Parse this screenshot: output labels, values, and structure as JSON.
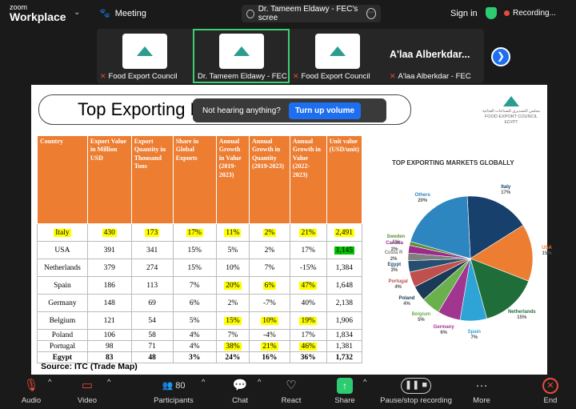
{
  "app": {
    "logo_line1": "zoom",
    "logo_line2": "Workplace"
  },
  "topbar": {
    "meeting_label": "Meeting",
    "share_tab_label": "Dr. Tameem Eldawy - FEC's scree",
    "signin": "Sign in",
    "recording": "Recording..."
  },
  "participants": [
    {
      "name": "Food Export Council",
      "muted": true
    },
    {
      "name": "Dr. Tameem Eldawy - FEC",
      "muted": false
    },
    {
      "name": "Food Export Council",
      "muted": true
    },
    {
      "name": "A'laa Alberkdar - FEC",
      "muted": true,
      "display_name": "A'laa Alberkdar..."
    }
  ],
  "slide": {
    "title": "Top Exporting Markets Globally 2023",
    "toast_text": "Not hearing anything?",
    "toast_button": "Turn up volume",
    "logo_text_ar": "مجلس التصديري للصناعات الغذائية",
    "logo_text_en": "FOOD EXPORT COUNCIL",
    "logo_text_country": "EGYPT",
    "source": "Source: ITC (Trade Map)",
    "table": {
      "headers": [
        "Country",
        "Export Value in Million USD",
        "Export Quantity in Thousand Tons",
        "Share in Global Exports",
        "Annual Growth in Value (2019-2023)",
        "Annual Growth in Quantity (2019-2023)",
        "Annual Growth in Value (2022-2023)",
        "Unit value (USD/unit)"
      ],
      "rows": [
        [
          "Italy",
          "430",
          "173",
          "17%",
          "11%",
          "2%",
          "21%",
          "2,491"
        ],
        [
          "USA",
          "391",
          "341",
          "15%",
          "5%",
          "2%",
          "17%",
          "1,145"
        ],
        [
          "Netherlands",
          "379",
          "274",
          "15%",
          "10%",
          "7%",
          "-15%",
          "1,384"
        ],
        [
          "Spain",
          "186",
          "113",
          "7%",
          "20%",
          "6%",
          "47%",
          "1,648"
        ],
        [
          "Germany",
          "148",
          "69",
          "6%",
          "2%",
          "-7%",
          "40%",
          "2,138"
        ],
        [
          "Belgium",
          "121",
          "54",
          "5%",
          "15%",
          "10%",
          "19%",
          "1,906"
        ],
        [
          "Poland",
          "106",
          "58",
          "4%",
          "7%",
          "-4%",
          "17%",
          "1,834"
        ],
        [
          "Portugal",
          "98",
          "71",
          "4%",
          "38%",
          "21%",
          "46%",
          "1,381"
        ],
        [
          "Egypt",
          "83",
          "48",
          "3%",
          "24%",
          "16%",
          "36%",
          "1,732"
        ]
      ]
    }
  },
  "chart_data": {
    "type": "pie",
    "title": "TOP EXPORTING MARKETS GLOBALLY",
    "categories": [
      "Italy",
      "USA",
      "Netherlands",
      "Spain",
      "Germany",
      "Belgium",
      "Poland",
      "Portugal",
      "Egypt",
      "Costa Rica",
      "Canada",
      "Sweden",
      "Others"
    ],
    "values": [
      17,
      15,
      15,
      7,
      6,
      5,
      4,
      4,
      3,
      2,
      2,
      1,
      20
    ],
    "labels": [
      "Italy\n17%",
      "USA\n15%",
      "Netherlands\n15%",
      "Spain\n7%",
      "Germany\n6%",
      "Belgium\n5%",
      "Poland\n4%",
      "Portugal\n4%",
      "Egypt\n3%",
      "Costa R\n2%",
      "Canada\n2%",
      "Sweden\n1%",
      "Others\n20%"
    ],
    "colors": [
      "#17406d",
      "#ec7d31",
      "#1f6e3a",
      "#2ea3d5",
      "#a0368f",
      "#6ab04c",
      "#1b3a57",
      "#c0504d",
      "#254e70",
      "#7f7f7f",
      "#9c2a8c",
      "#5a8f3a",
      "#2e86c1"
    ]
  },
  "controls": [
    {
      "label": "Audio",
      "icon": "mic-off-icon"
    },
    {
      "label": "Video",
      "icon": "video-off-icon"
    },
    {
      "label": "Participants",
      "icon": "participants-icon",
      "count": "80"
    },
    {
      "label": "Chat",
      "icon": "chat-icon"
    },
    {
      "label": "React",
      "icon": "heart-icon"
    },
    {
      "label": "Share",
      "icon": "share-icon"
    },
    {
      "label": "Pause/stop recording",
      "icon": "pause-recording-icon"
    },
    {
      "label": "More",
      "icon": "more-icon"
    },
    {
      "label": "End",
      "icon": "end-icon"
    }
  ]
}
